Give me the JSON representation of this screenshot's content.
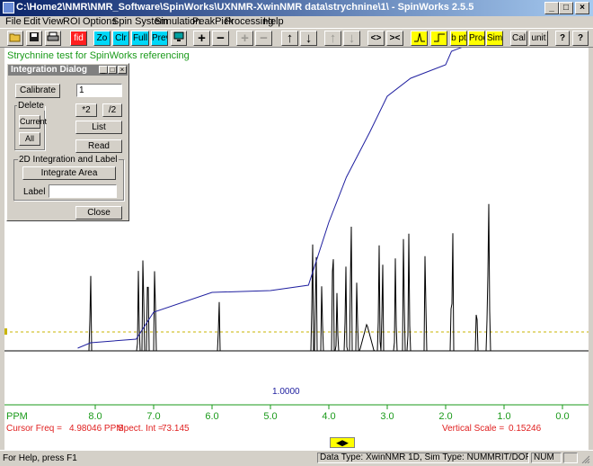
{
  "window": {
    "title": "C:\\Home2\\NMR\\NMR_Software\\SpinWorks\\UXNMR-XwinNMR data\\strychnine\\1\\ - SpinWorks 2.5.5"
  },
  "menu": [
    "File",
    "Edit",
    "View",
    "ROI",
    "Options",
    "Spin System",
    "Simulation",
    "PeakPick",
    "Processing",
    "Help"
  ],
  "toolbar": {
    "fid": "fid",
    "zo": "Zo",
    "clr": "Clr",
    "full": "Full",
    "prev": "Prev",
    "plus": "+",
    "minus": "−",
    "plus2": "+",
    "minus2": "−",
    "up": "↑",
    "down": "↓",
    "up2": "↑",
    "down2": "↓",
    "expand": "<>",
    "contract": "><",
    "bpt": "b pt",
    "proc": "Proc",
    "sim": "Sim",
    "cal": "Cal",
    "unit": "unit",
    "help": "?",
    "whatsthis": "?"
  },
  "subtitle": "Strychnine test for SpinWorks referencing",
  "dialog": {
    "title": "Integration Dialog",
    "calibrate": "Calibrate",
    "calib_value": "1",
    "delete_group": "Delete",
    "current": "Current",
    "all": "All",
    "times2": "*2",
    "div2": "/2",
    "list": "List",
    "read": "Read",
    "group2d": "2D Integration and Label",
    "integrate_area": "Integrate Area",
    "label_label": "Label",
    "label_value": "",
    "close": "Close"
  },
  "plot": {
    "integral_label": "1.0000",
    "axis_unit": "PPM",
    "cursor_freq_label": "Cursor Freq =",
    "cursor_freq_value": "4.98046 PPM",
    "spect_int_label": "Spect. Int =",
    "spect_int_value": "73.145",
    "vscale_label": "Vertical Scale =",
    "vscale_value": "0.15246",
    "scroll_arrows": "◀▶"
  },
  "chart_data": {
    "type": "line",
    "xlabel": "PPM",
    "xlim": [
      9.2,
      -0.2
    ],
    "ticks": [
      "8.0",
      "7.0",
      "6.0",
      "5.0",
      "4.0",
      "3.0",
      "2.0",
      "1.0",
      "0.0"
    ],
    "tick_values": [
      8.0,
      7.0,
      6.0,
      5.0,
      4.0,
      3.0,
      2.0,
      1.0,
      0.0
    ],
    "peaks_ppm": [
      8.08,
      7.26,
      7.18,
      7.1,
      6.98,
      5.88,
      4.28,
      4.22,
      4.12,
      3.93,
      3.86,
      3.71,
      3.62,
      3.52,
      3.14,
      3.08,
      2.86,
      2.72,
      2.63,
      2.35,
      1.9,
      1.88,
      1.47,
      1.28,
      1.26
    ],
    "integral_label": "1.0000"
  },
  "colors": {
    "spectrum": "#000000",
    "integral": "#2020a0",
    "axis": "#1a9a1a",
    "baseline_dash": "#c8b400",
    "status_red": "#e02020"
  },
  "statusbar": {
    "help": "For Help, press F1",
    "datatype": "Data Type: XwinNMR 1D,   Sim Type: NUMMRIT/DOR",
    "num": "NUM"
  }
}
